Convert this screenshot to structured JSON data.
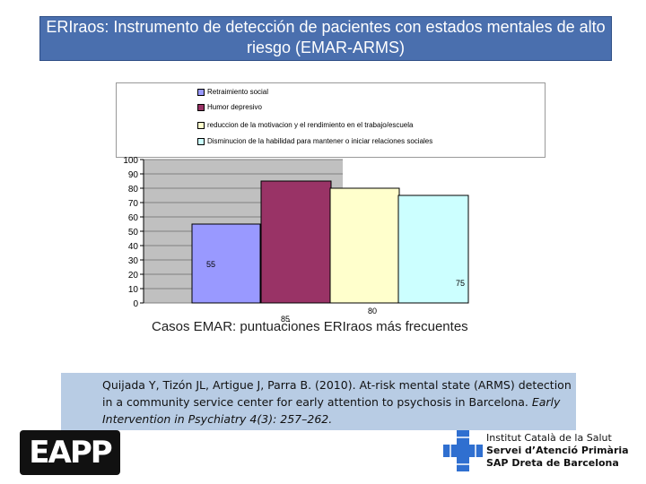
{
  "slide": {
    "title": "ERIraos: Instrumento de detección de pacientes con estados mentales de alto riesgo (EMAR-ARMS)",
    "caption": "Casos EMAR: puntuaciones ERIraos más frecuentes",
    "citation": {
      "text_before": "Quijada Y, Tizón JL, Artigue J, Parra B. (2010). At-risk mental state (ARMS) detection in a community service center for early attention to psychosis in Barcelona. ",
      "journal": "Early Intervention in Psychiatry 4(3): 257–262."
    },
    "logo_text": "EAPP",
    "institution": {
      "line1": "Institut Català de la Salut",
      "line2": "Servei d’Atenció Primària",
      "line3": "SAP Dreta de Barcelona"
    }
  },
  "chart_data": {
    "type": "bar",
    "categories": [
      "Retraimiento social",
      "Humor depresivo",
      "reduccion de la motivacion y el rendimiento en el trabajo/escuela",
      "Disminucion de la habilidad para mantener o iniciar relaciones sociales"
    ],
    "values": [
      55,
      85,
      80,
      75
    ],
    "data_labels": [
      "55",
      "85",
      "80",
      "75"
    ],
    "colors": [
      "#9999ff",
      "#993366",
      "#ffffcc",
      "#ccffff"
    ],
    "ylim": [
      0,
      100
    ],
    "yticks": [
      0,
      10,
      20,
      30,
      40,
      50,
      60,
      70,
      80,
      90,
      100
    ],
    "legend_position": "top",
    "grid": true,
    "plot_background": "#c0c0c0"
  }
}
